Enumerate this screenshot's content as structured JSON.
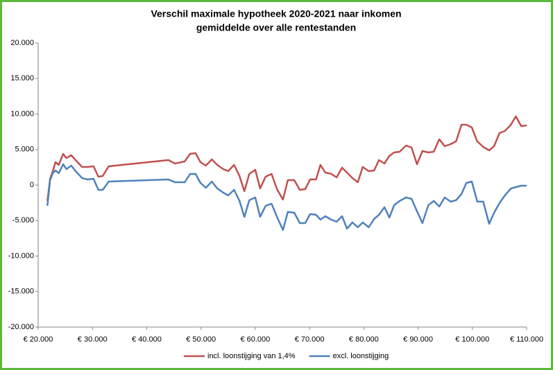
{
  "chart_data": {
    "type": "line",
    "title": "Verschil maximale hypotheek 2020-2021 naar inkomen",
    "subtitle": "gemiddelde over alle rentestanden",
    "x": [
      21700,
      22200,
      22700,
      23200,
      23800,
      24600,
      25200,
      26100,
      27000,
      28100,
      29100,
      30200,
      31100,
      31900,
      33000,
      44000,
      45200,
      47000,
      48000,
      49000,
      49900,
      50900,
      52000,
      53000,
      54100,
      55000,
      56100,
      57100,
      58000,
      58900,
      60000,
      60900,
      61900,
      63000,
      64000,
      65100,
      66000,
      67200,
      68200,
      69200,
      70100,
      71200,
      72000,
      72900,
      74000,
      75000,
      76000,
      76900,
      77900,
      78900,
      79800,
      80900,
      81900,
      82800,
      83800,
      84700,
      85600,
      86600,
      87800,
      88800,
      89800,
      90800,
      91900,
      92900,
      93900,
      94900,
      96000,
      97000,
      98000,
      98900,
      99900,
      100900,
      102000,
      103100,
      104000,
      105000,
      106000,
      107100,
      108000,
      109000,
      110000
    ],
    "series": [
      {
        "name": "incl. loonstijging van 1,4%",
        "color": "#c0504d",
        "values": [
          -2240,
          880,
          1950,
          3220,
          2830,
          4390,
          3800,
          4200,
          3410,
          2540,
          2540,
          2630,
          1170,
          1270,
          2630,
          3510,
          3020,
          3320,
          4390,
          4490,
          3220,
          2730,
          3610,
          2830,
          2240,
          1950,
          2830,
          1270,
          -880,
          1560,
          2150,
          -490,
          1170,
          1560,
          -590,
          -2050,
          680,
          680,
          -680,
          -590,
          780,
          780,
          2830,
          1760,
          1560,
          1070,
          2440,
          1760,
          980,
          390,
          2540,
          1950,
          2050,
          3510,
          3020,
          4100,
          4590,
          4680,
          5560,
          5270,
          2930,
          4780,
          4590,
          4680,
          6440,
          5460,
          5760,
          6150,
          8490,
          8490,
          8100,
          6150,
          5370,
          4880,
          5460,
          7320,
          7610,
          8490,
          9660,
          8290,
          8390
        ]
      },
      {
        "name": "excl. loonstijging",
        "color": "#4f81bd",
        "values": [
          -2930,
          680,
          1660,
          2050,
          1660,
          2930,
          2240,
          2730,
          1850,
          980,
          780,
          880,
          -680,
          -680,
          490,
          780,
          390,
          390,
          1560,
          1560,
          290,
          -390,
          490,
          -490,
          -1070,
          -1460,
          -680,
          -2240,
          -4490,
          -2150,
          -1760,
          -4490,
          -2930,
          -2630,
          -4490,
          -6340,
          -3800,
          -3900,
          -5370,
          -5370,
          -4100,
          -4200,
          -4880,
          -4390,
          -4880,
          -5170,
          -4390,
          -6150,
          -5270,
          -5950,
          -5270,
          -5950,
          -4780,
          -4200,
          -3120,
          -4590,
          -2830,
          -2240,
          -1760,
          -1950,
          -3710,
          -5370,
          -2830,
          -2240,
          -3020,
          -1760,
          -2340,
          -2150,
          -1270,
          290,
          490,
          -2340,
          -2340,
          -5460,
          -3900,
          -2540,
          -1460,
          -490,
          -290,
          -100,
          -100
        ]
      }
    ],
    "xlim": [
      20000,
      110000
    ],
    "xticks": [
      {
        "value": 20000,
        "label": "€ 20.000"
      },
      {
        "value": 30000,
        "label": "€ 30.000"
      },
      {
        "value": 40000,
        "label": "€ 40.000"
      },
      {
        "value": 50000,
        "label": "€ 50.000"
      },
      {
        "value": 60000,
        "label": "€ 60.000"
      },
      {
        "value": 70000,
        "label": "€ 70.000"
      },
      {
        "value": 80000,
        "label": "€ 80.000"
      },
      {
        "value": 90000,
        "label": "€ 90.000"
      },
      {
        "value": 100000,
        "label": "€ 100.000"
      },
      {
        "value": 110000,
        "label": "€ 110.000"
      }
    ],
    "ylim": [
      -20000,
      20000
    ],
    "yticks": [
      {
        "value": -20000,
        "label": "-20.000"
      },
      {
        "value": -15000,
        "label": "-15.000"
      },
      {
        "value": -10000,
        "label": "-10.000"
      },
      {
        "value": -5000,
        "label": "-5.000"
      },
      0,
      {
        "value": 5000,
        "label": "5.000"
      },
      {
        "value": 10000,
        "label": "10.000"
      },
      {
        "value": 15000,
        "label": "15.000"
      },
      {
        "value": 20000,
        "label": "20.000"
      }
    ],
    "grid": false,
    "legend": "bottom"
  }
}
